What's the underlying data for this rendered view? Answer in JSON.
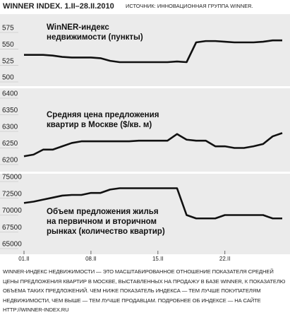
{
  "title": "WINNER INDEX. 1.II–28.II.2010",
  "source": "ИСТОЧНИК: ИННОВАЦИОННАЯ ГРУППА WINNER.",
  "note": "WINNER-ИНДЕКС НЕДВИЖИМОСТИ — ЭТО МАСШТАБИРОВАННОЕ ОТНОШЕНИЕ ПОКАЗАТЕЛЯ СРЕДНЕЙ ЦЕНЫ ПРЕДЛОЖЕНИЯ КВАРТИР В МОСКВЕ, ВЫСТАВЛЕННЫХ НА ПРОДАЖУ В БАЗЕ WINNER, К ПОКАЗАТЕЛЮ ОБЪЕМА ТАКИХ ПРЕДЛОЖЕНИЙ. ЧЕМ НИЖЕ ПОКАЗАТЕЛЬ ИНДЕКСА — ТЕМ ЛУЧШЕ ПОКУПАТЕЛЯМ НЕДВИЖИМОСТИ, ЧЕМ ВЫШЕ — ТЕМ ЛУЧШЕ ПРОДАВЦАМ. ПОДРОБНЕЕ ОБ ИНДЕКСЕ — НА САЙТЕ HTTP://WINNER-INDEX.RU",
  "chart_data": [
    {
      "type": "line",
      "title": "WinNER-индекс\nнедвижимости (пункты)",
      "color": "#111111",
      "values": [
        541,
        541,
        541,
        540,
        538,
        537,
        537,
        537,
        536,
        532,
        530,
        530,
        530,
        530,
        530,
        530,
        531,
        530,
        560,
        562,
        562,
        561,
        560,
        560,
        560,
        561,
        563,
        563
      ],
      "ylim": [
        500,
        575
      ],
      "yticks": [
        500,
        525,
        550,
        575
      ]
    },
    {
      "type": "line",
      "title": "Средняя цена предложения\nквартир в Москве ($/кв. м)",
      "color": "#111111",
      "values": [
        6225,
        6230,
        6245,
        6245,
        6255,
        6265,
        6270,
        6270,
        6270,
        6270,
        6270,
        6270,
        6272,
        6272,
        6272,
        6272,
        6292,
        6275,
        6272,
        6272,
        6255,
        6255,
        6250,
        6250,
        6255,
        6262,
        6285,
        6295
      ],
      "ylim": [
        6200,
        6400
      ],
      "yticks": [
        6200,
        6250,
        6300,
        6350,
        6400
      ]
    },
    {
      "type": "line",
      "title": "Объем предложения жилья\nна первичном и вторичном\nрынках (количество квартир)",
      "color": "#111111",
      "categories": [
        "01.II",
        null,
        null,
        null,
        null,
        null,
        null,
        "08.II",
        null,
        null,
        null,
        null,
        null,
        null,
        "15.II",
        null,
        null,
        null,
        null,
        null,
        null,
        "22.II",
        null,
        null,
        null,
        null,
        null,
        null
      ],
      "values": [
        71800,
        72000,
        72300,
        72600,
        72900,
        73000,
        73000,
        73300,
        73300,
        73800,
        74000,
        74000,
        74000,
        74000,
        74000,
        74000,
        74000,
        70000,
        69500,
        69500,
        69500,
        70000,
        70000,
        70000,
        70000,
        70000,
        69500,
        69500
      ],
      "ylim": [
        65000,
        75000
      ],
      "yticks": [
        65000,
        67500,
        70000,
        72500,
        75000
      ]
    }
  ]
}
